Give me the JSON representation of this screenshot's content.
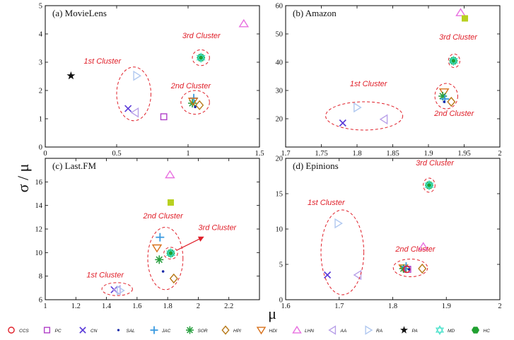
{
  "figure": {
    "xlabel": "μ",
    "ylabel": "σ / μ"
  },
  "colors": {
    "CCS": "#e0202a",
    "PC": "#b040c8",
    "CN": "#5a3ad8",
    "SAL": "#1a2aa8",
    "JAC": "#3a9ae0",
    "SOR": "#2aa040",
    "HPI": "#b87a1a",
    "HDI": "#d8701a",
    "LHN": "#e870e0",
    "AA": "#b8a0e8",
    "RA": "#b0c8f0",
    "PA": "#111111",
    "MD": "#40e0c8",
    "HC": "#20a030",
    "SQ": "#b8d020"
  },
  "legend": [
    {
      "key": "CCS",
      "label": "CCS",
      "marker": "circle-open"
    },
    {
      "key": "PC",
      "label": "PC",
      "marker": "square-open"
    },
    {
      "key": "CN",
      "label": "CN",
      "marker": "x"
    },
    {
      "key": "SAL",
      "label": "SAL",
      "marker": "dot"
    },
    {
      "key": "JAC",
      "label": "JAC",
      "marker": "plus"
    },
    {
      "key": "SOR",
      "label": "SOR",
      "marker": "asterisk"
    },
    {
      "key": "HPI",
      "label": "HPI",
      "marker": "diamond-open"
    },
    {
      "key": "HDI",
      "label": "HDI",
      "marker": "tri-down-open"
    },
    {
      "key": "LHN",
      "label": "LHN",
      "marker": "tri-up-open"
    },
    {
      "key": "AA",
      "label": "AA",
      "marker": "tri-left-open"
    },
    {
      "key": "RA",
      "label": "RA",
      "marker": "tri-right-open"
    },
    {
      "key": "PA",
      "label": "PA",
      "marker": "star"
    },
    {
      "key": "MD",
      "label": "MD",
      "marker": "hexagram-open"
    },
    {
      "key": "HC",
      "label": "HC",
      "marker": "hexagon"
    }
  ],
  "chart_data": [
    {
      "id": "movielens",
      "type": "scatter",
      "title": "(a) MovieLens",
      "xlim": [
        0,
        1.5
      ],
      "ylim": [
        0,
        5
      ],
      "xticks": [
        0,
        0.5,
        1,
        1.5
      ],
      "xticklabels": [
        "0",
        "0.5",
        "1",
        "1.5"
      ],
      "yticks": [
        0,
        1,
        2,
        3,
        4,
        5
      ],
      "yticklabels": [
        "0",
        "1",
        "2",
        "3",
        "4",
        "5"
      ],
      "points": [
        {
          "key": "PA",
          "marker": "star",
          "x": 0.18,
          "y": 2.52
        },
        {
          "key": "CN",
          "marker": "x",
          "x": 0.58,
          "y": 1.36
        },
        {
          "key": "AA",
          "marker": "tri-left-open",
          "x": 0.63,
          "y": 1.22
        },
        {
          "key": "RA",
          "marker": "tri-right-open",
          "x": 0.64,
          "y": 2.52
        },
        {
          "key": "PC",
          "marker": "square-open",
          "x": 0.83,
          "y": 1.07
        },
        {
          "key": "SOR",
          "marker": "asterisk",
          "x": 1.03,
          "y": 1.55
        },
        {
          "key": "JAC",
          "marker": "plus",
          "x": 1.04,
          "y": 1.73
        },
        {
          "key": "HDI",
          "marker": "tri-down-open",
          "x": 1.035,
          "y": 1.62
        },
        {
          "key": "SAL",
          "marker": "dot",
          "x": 1.05,
          "y": 1.42
        },
        {
          "key": "HPI",
          "marker": "diamond-open",
          "x": 1.08,
          "y": 1.48
        },
        {
          "key": "HC",
          "marker": "hexagon",
          "x": 1.09,
          "y": 3.16
        },
        {
          "key": "MD",
          "marker": "hexagram-open",
          "x": 1.09,
          "y": 3.16
        },
        {
          "key": "LHN",
          "marker": "tri-up-open",
          "x": 1.39,
          "y": 4.36
        }
      ],
      "clusters": [
        {
          "label": "1st Cluster",
          "cx": 0.62,
          "cy": 1.88,
          "rx": 0.12,
          "ry": 0.95,
          "lx": 0.27,
          "ly": 2.95
        },
        {
          "label": "2nd Cluster",
          "cx": 1.05,
          "cy": 1.58,
          "rx": 0.1,
          "ry": 0.42,
          "lx": 0.88,
          "ly": 2.08
        },
        {
          "label": "3rd Cluster",
          "cx": 1.09,
          "cy": 3.16,
          "rx": 0.06,
          "ry": 0.28,
          "lx": 0.96,
          "ly": 3.85
        }
      ],
      "arrow": null
    },
    {
      "id": "amazon",
      "type": "scatter",
      "title": "(b) Amazon",
      "xlim": [
        1.7,
        2
      ],
      "ylim": [
        10,
        60
      ],
      "xticks": [
        1.7,
        1.75,
        1.8,
        1.85,
        1.9,
        1.95,
        2
      ],
      "xticklabels": [
        "1.7",
        "1.75",
        "1.8",
        "1.85",
        "1.9",
        "1.95",
        "2"
      ],
      "yticks": [
        10,
        20,
        30,
        40,
        50,
        60
      ],
      "yticklabels": [
        "",
        "20",
        "30",
        "40",
        "50",
        "60"
      ],
      "points": [
        {
          "key": "CN",
          "marker": "x",
          "x": 1.78,
          "y": 18.5
        },
        {
          "key": "RA",
          "marker": "tri-right-open",
          "x": 1.8,
          "y": 24
        },
        {
          "key": "AA",
          "marker": "tri-left-open",
          "x": 1.838,
          "y": 19.8
        },
        {
          "key": "HDI",
          "marker": "tri-down-open",
          "x": 1.922,
          "y": 29.5
        },
        {
          "key": "SOR",
          "marker": "asterisk",
          "x": 1.92,
          "y": 28
        },
        {
          "key": "JAC",
          "marker": "plus",
          "x": 1.923,
          "y": 27
        },
        {
          "key": "SAL",
          "marker": "dot",
          "x": 1.922,
          "y": 26
        },
        {
          "key": "HPI",
          "marker": "diamond-open",
          "x": 1.932,
          "y": 26
        },
        {
          "key": "HC",
          "marker": "hexagon",
          "x": 1.935,
          "y": 40.5
        },
        {
          "key": "MD",
          "marker": "hexagram-open",
          "x": 1.935,
          "y": 40.5
        },
        {
          "key": "LHN",
          "marker": "tri-up-open",
          "x": 1.945,
          "y": 57.5
        },
        {
          "key": "SQ",
          "marker": "square-filled",
          "x": 1.951,
          "y": 55.5
        }
      ],
      "clusters": [
        {
          "label": "1st Cluster",
          "cx": 1.81,
          "cy": 21,
          "rx": 0.054,
          "ry": 5,
          "lx": 1.79,
          "ly": 31.5
        },
        {
          "label": "2nd Cluster",
          "cx": 1.925,
          "cy": 28,
          "rx": 0.016,
          "ry": 4.5,
          "lx": 1.908,
          "ly": 21
        },
        {
          "label": "3rd Cluster",
          "cx": 1.936,
          "cy": 40.5,
          "rx": 0.008,
          "ry": 2.4,
          "lx": 1.915,
          "ly": 48
        }
      ],
      "arrow": null
    },
    {
      "id": "lastfm",
      "type": "scatter",
      "title": "(c) Last.FM",
      "xlim": [
        1,
        2.4
      ],
      "ylim": [
        6,
        18
      ],
      "xticks": [
        1,
        1.2,
        1.4,
        1.6,
        1.8,
        2,
        2.2
      ],
      "xticklabels": [
        "1",
        "1.2",
        "1.4",
        "1.6",
        "1.8",
        "2",
        "2.2"
      ],
      "yticks": [
        6,
        8,
        10,
        12,
        14,
        16
      ],
      "yticklabels": [
        "6",
        "8",
        "10",
        "12",
        "14",
        "16"
      ],
      "points": [
        {
          "key": "CN",
          "marker": "x",
          "x": 1.45,
          "y": 6.85
        },
        {
          "key": "AA",
          "marker": "tri-left-open",
          "x": 1.47,
          "y": 6.82
        },
        {
          "key": "RA",
          "marker": "tri-right-open",
          "x": 1.49,
          "y": 6.78
        },
        {
          "key": "JAC",
          "marker": "plus",
          "x": 1.75,
          "y": 11.3
        },
        {
          "key": "HDI",
          "marker": "tri-down-open",
          "x": 1.73,
          "y": 10.4
        },
        {
          "key": "SOR",
          "marker": "asterisk",
          "x": 1.745,
          "y": 9.4
        },
        {
          "key": "SAL",
          "marker": "dot",
          "x": 1.77,
          "y": 8.4
        },
        {
          "key": "HPI",
          "marker": "diamond-open",
          "x": 1.84,
          "y": 7.8
        },
        {
          "key": "HC",
          "marker": "hexagon",
          "x": 1.82,
          "y": 9.95
        },
        {
          "key": "MD",
          "marker": "hexagram-open",
          "x": 1.82,
          "y": 9.95
        },
        {
          "key": "LHN",
          "marker": "tri-up-open",
          "x": 1.815,
          "y": 16.6
        },
        {
          "key": "SQ",
          "marker": "square-filled",
          "x": 1.82,
          "y": 14.25
        }
      ],
      "clusters": [
        {
          "label": "1st Cluster",
          "cx": 1.47,
          "cy": 6.9,
          "rx": 0.1,
          "ry": 0.55,
          "lx": 1.27,
          "ly": 7.9
        },
        {
          "label": "2nd Cluster",
          "cx": 1.785,
          "cy": 9.5,
          "rx": 0.115,
          "ry": 2.65,
          "lx": 1.64,
          "ly": 12.9
        },
        {
          "label": "3rd Cluster",
          "cx": 1.82,
          "cy": 9.95,
          "rx": 0.045,
          "ry": 0.5,
          "lx": 2.0,
          "ly": 11.9
        }
      ],
      "arrow": {
        "x1": 1.86,
        "y1": 10.2,
        "x2": 2.03,
        "y2": 11.3
      }
    },
    {
      "id": "epinions",
      "type": "scatter",
      "title": "(d) Epinions",
      "xlim": [
        1.6,
        2
      ],
      "ylim": [
        0,
        20
      ],
      "xticks": [
        1.6,
        1.7,
        1.8,
        1.9,
        2
      ],
      "xticklabels": [
        "1.6",
        "1.7",
        "1.8",
        "1.9",
        "2"
      ],
      "yticks": [
        0,
        5,
        10,
        15,
        20
      ],
      "yticklabels": [
        "0",
        "5",
        "10",
        "15",
        "20"
      ],
      "points": [
        {
          "key": "CN",
          "marker": "x",
          "x": 1.678,
          "y": 3.5
        },
        {
          "key": "RA",
          "marker": "tri-right-open",
          "x": 1.698,
          "y": 10.8
        },
        {
          "key": "AA",
          "marker": "tri-left-open",
          "x": 1.735,
          "y": 3.5
        },
        {
          "key": "HDI",
          "marker": "tri-down-open",
          "x": 1.82,
          "y": 4.5
        },
        {
          "key": "SOR",
          "marker": "asterisk",
          "x": 1.82,
          "y": 4.4
        },
        {
          "key": "JAC",
          "marker": "plus",
          "x": 1.825,
          "y": 4.7
        },
        {
          "key": "PC",
          "marker": "square-open",
          "x": 1.828,
          "y": 4.3
        },
        {
          "key": "CCS",
          "marker": "circle-open",
          "x": 1.826,
          "y": 4.3
        },
        {
          "key": "SAL",
          "marker": "dot",
          "x": 1.83,
          "y": 4.3
        },
        {
          "key": "HPI",
          "marker": "diamond-open",
          "x": 1.855,
          "y": 4.4
        },
        {
          "key": "LHN",
          "marker": "tri-up-open",
          "x": 1.857,
          "y": 7.5
        },
        {
          "key": "HC",
          "marker": "hexagon",
          "x": 1.868,
          "y": 16.2
        },
        {
          "key": "MD",
          "marker": "hexagram-open",
          "x": 1.868,
          "y": 16.2
        }
      ],
      "clusters": [
        {
          "label": "1st Cluster",
          "cx": 1.706,
          "cy": 6.7,
          "rx": 0.04,
          "ry": 6.0,
          "lx": 1.641,
          "ly": 13.4
        },
        {
          "label": "2nd Cluster",
          "cx": 1.833,
          "cy": 4.5,
          "rx": 0.032,
          "ry": 1.25,
          "lx": 1.805,
          "ly": 6.8
        },
        {
          "label": "3rd Cluster",
          "cx": 1.868,
          "cy": 16.2,
          "rx": 0.011,
          "ry": 1.0,
          "lx": 1.843,
          "ly": 19.0
        }
      ],
      "arrow": null
    }
  ]
}
